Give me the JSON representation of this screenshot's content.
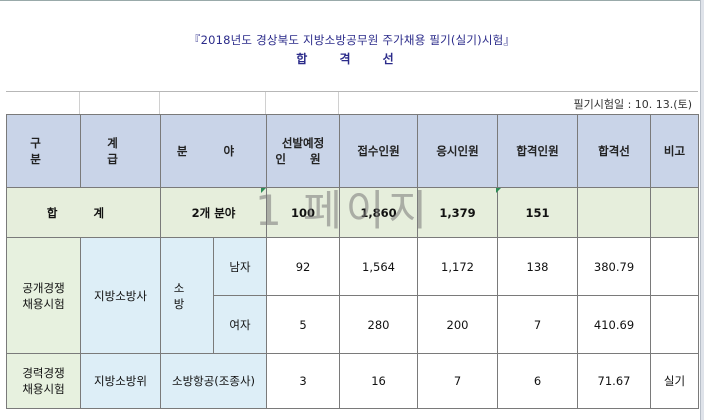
{
  "document": {
    "title": "『2018년도 경상북도 지방소방공무원 주가채용 필기(실기)시험』",
    "subtitle": "합 격 선",
    "exam_date": "필기시험일 : 10. 13.(토)"
  },
  "watermark": "1 페이지",
  "table": {
    "headers": {
      "category": "구 분",
      "level": "계 급",
      "field": "분 야",
      "planned": [
        "선발예정",
        "인 원"
      ],
      "applicants": "접수인원",
      "takers": "응시인원",
      "passers": "합격인원",
      "cutoff": "합격선",
      "remarks": "비고"
    },
    "total": {
      "label": "합 계",
      "field": "2개 분야",
      "planned": "100",
      "applicants": "1,860",
      "takers": "1,379",
      "passers": "151",
      "cutoff": "",
      "remarks": ""
    },
    "rows": [
      {
        "category": [
          "공개경쟁",
          "채용시험"
        ],
        "level": "지방소방사",
        "field": "소 방",
        "gender": "남자",
        "planned": "92",
        "applicants": "1,564",
        "takers": "1,172",
        "passers": "138",
        "cutoff": "380.79",
        "remarks": ""
      },
      {
        "gender": "여자",
        "planned": "5",
        "applicants": "280",
        "takers": "200",
        "passers": "7",
        "cutoff": "410.69",
        "remarks": ""
      },
      {
        "category": [
          "경력경쟁",
          "채용시험"
        ],
        "level": "지방소방위",
        "field": "소방항공(조종사)",
        "planned": "3",
        "applicants": "16",
        "takers": "7",
        "passers": "6",
        "cutoff": "71.67",
        "remarks": "실기"
      }
    ]
  }
}
